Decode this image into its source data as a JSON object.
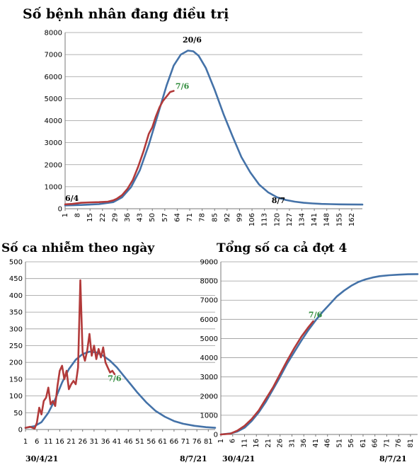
{
  "chart_data": [
    {
      "id": "chart1",
      "type": "line",
      "title": "Số bệnh nhân đang điều trị",
      "ylim": [
        0,
        8000
      ],
      "yticks": [
        0,
        1000,
        2000,
        3000,
        4000,
        5000,
        6000,
        7000,
        8000
      ],
      "xlim": [
        1,
        168
      ],
      "xticks": [
        1,
        8,
        15,
        22,
        29,
        36,
        43,
        50,
        57,
        64,
        71,
        78,
        85,
        92,
        99,
        106,
        113,
        120,
        127,
        134,
        141,
        148,
        155,
        162
      ],
      "grid": true,
      "series": [
        {
          "color": "#4472a8",
          "x": [
            1,
            10,
            20,
            28,
            33,
            38,
            43,
            48,
            53,
            58,
            62,
            66,
            70,
            73,
            76,
            80,
            85,
            90,
            95,
            100,
            105,
            110,
            115,
            120,
            125,
            130,
            135,
            140,
            145,
            150,
            155,
            160,
            168
          ],
          "y": [
            150,
            170,
            210,
            300,
            520,
            980,
            1750,
            2900,
            4250,
            5600,
            6500,
            7000,
            7180,
            7150,
            6950,
            6400,
            5400,
            4300,
            3300,
            2350,
            1650,
            1100,
            750,
            520,
            400,
            320,
            270,
            240,
            220,
            210,
            200,
            195,
            190
          ]
        },
        {
          "color": "#b23a3a",
          "x": [
            1,
            5,
            10,
            15,
            20,
            25,
            28,
            30,
            33,
            36,
            39,
            42,
            45,
            48,
            50,
            52,
            54,
            56,
            58,
            60,
            62
          ],
          "y": [
            200,
            220,
            270,
            290,
            300,
            320,
            380,
            450,
            620,
            900,
            1300,
            1900,
            2600,
            3400,
            3700,
            4200,
            4600,
            4900,
            5100,
            5300,
            5350
          ]
        }
      ],
      "annotations": [
        {
          "text": "6/4",
          "x": 1,
          "y": 350,
          "color": "#000000"
        },
        {
          "text": "20/6",
          "x": 67,
          "y": 7550,
          "color": "#000000"
        },
        {
          "text": "7/6",
          "x": 63,
          "y": 5450,
          "color": "#2e8b3a"
        },
        {
          "text": "8/7",
          "x": 117,
          "y": 250,
          "color": "#000000"
        }
      ]
    },
    {
      "id": "chart2",
      "type": "line",
      "title": "Số ca nhiễm theo ngày",
      "ylim": [
        0,
        500
      ],
      "yticks": [
        0,
        50,
        100,
        150,
        200,
        250,
        300,
        350,
        400,
        450,
        500
      ],
      "xlim": [
        1,
        84
      ],
      "xticks": [
        1,
        6,
        11,
        16,
        21,
        26,
        31,
        36,
        41,
        46,
        51,
        56,
        61,
        66,
        71,
        76,
        81
      ],
      "grid": true,
      "series": [
        {
          "color": "#4472a8",
          "x": [
            1,
            5,
            8,
            11,
            14,
            17,
            20,
            23,
            26,
            29,
            32,
            35,
            38,
            41,
            44,
            47,
            50,
            54,
            58,
            62,
            66,
            70,
            75,
            80,
            84
          ],
          "y": [
            5,
            10,
            22,
            50,
            90,
            140,
            180,
            208,
            225,
            232,
            230,
            220,
            205,
            185,
            160,
            135,
            110,
            80,
            55,
            38,
            25,
            17,
            11,
            7,
            5
          ]
        },
        {
          "color": "#b23a3a",
          "x": [
            1,
            3,
            5,
            6,
            7,
            8,
            9,
            10,
            11,
            12,
            13,
            14,
            15,
            16,
            17,
            18,
            19,
            20,
            21,
            22,
            23,
            24,
            25,
            26,
            27,
            28,
            29,
            30,
            31,
            32,
            33,
            34,
            35,
            36,
            37,
            38,
            39,
            40
          ],
          "y": [
            5,
            8,
            3,
            20,
            65,
            45,
            85,
            95,
            125,
            75,
            85,
            70,
            130,
            175,
            190,
            150,
            175,
            120,
            135,
            145,
            135,
            185,
            445,
            230,
            205,
            235,
            285,
            220,
            250,
            210,
            240,
            215,
            245,
            200,
            185,
            170,
            175,
            165
          ]
        }
      ],
      "annotations": [
        {
          "text": "7/6",
          "x": 37,
          "y": 145,
          "color": "#2e8b3a"
        }
      ],
      "xlabels": [
        "30/4/21",
        "8/7/21"
      ]
    },
    {
      "id": "chart3",
      "type": "line",
      "title": "Tổng số ca cả đợt 4",
      "ylim": [
        0,
        9000
      ],
      "yticks": [
        0,
        1000,
        2000,
        3000,
        4000,
        5000,
        6000,
        7000,
        8000,
        9000
      ],
      "xlim": [
        1,
        84
      ],
      "xticks": [
        1,
        6,
        11,
        16,
        21,
        26,
        31,
        36,
        41,
        46,
        51,
        56,
        61,
        66,
        71,
        76,
        81
      ],
      "grid": true,
      "series": [
        {
          "color": "#4472a8",
          "x": [
            1,
            5,
            8,
            11,
            14,
            17,
            20,
            23,
            26,
            29,
            32,
            35,
            38,
            41,
            44,
            47,
            50,
            53,
            56,
            59,
            62,
            65,
            68,
            72,
            76,
            80,
            84
          ],
          "y": [
            0,
            50,
            150,
            350,
            700,
            1150,
            1700,
            2350,
            3000,
            3700,
            4300,
            4900,
            5450,
            5950,
            6400,
            6800,
            7200,
            7500,
            7750,
            7950,
            8080,
            8180,
            8250,
            8300,
            8330,
            8350,
            8360
          ]
        },
        {
          "color": "#b23a3a",
          "x": [
            1,
            5,
            8,
            11,
            14,
            17,
            20,
            23,
            26,
            29,
            32,
            35,
            38,
            40
          ],
          "y": [
            0,
            40,
            200,
            450,
            800,
            1250,
            1850,
            2450,
            3150,
            3850,
            4500,
            5100,
            5600,
            5900
          ]
        }
      ],
      "annotations": [
        {
          "text": "7/6",
          "x": 38,
          "y": 6100,
          "color": "#2e8b3a"
        }
      ],
      "xlabels": [
        "30/4/21",
        "8/7/21"
      ]
    }
  ]
}
